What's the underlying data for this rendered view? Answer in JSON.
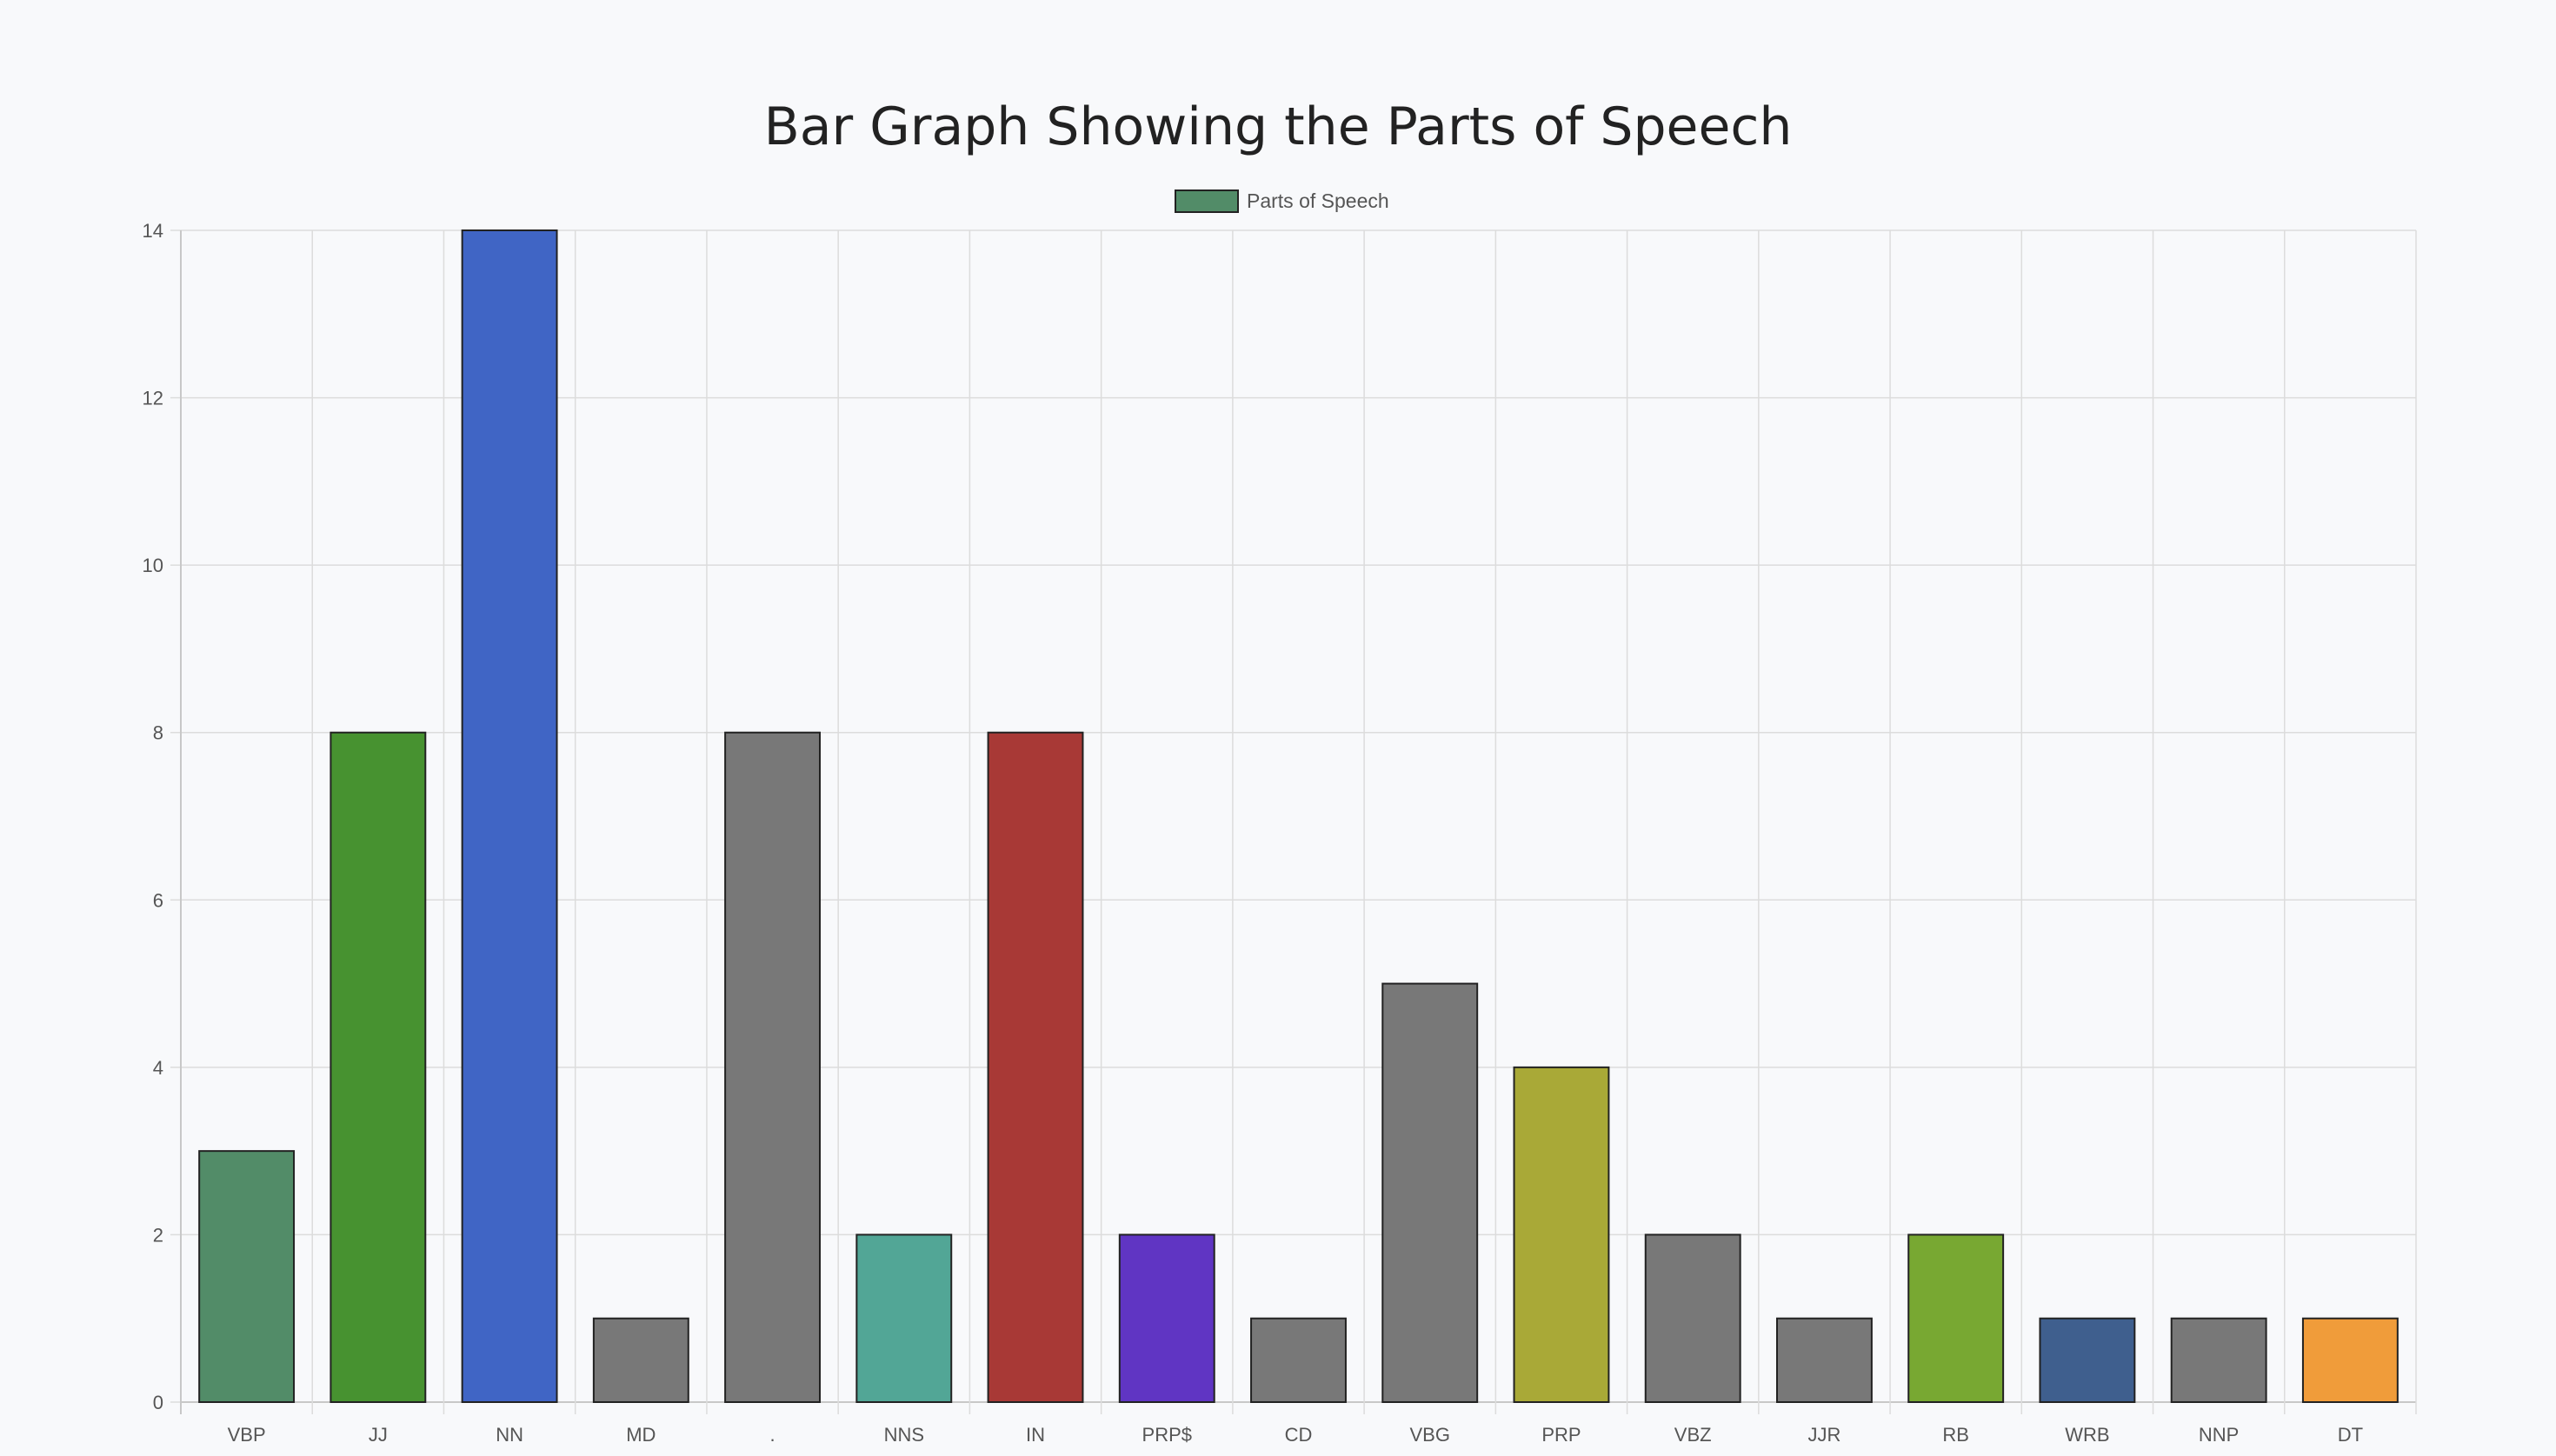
{
  "chart_data": {
    "type": "bar",
    "title": "Bar Graph Showing the Parts of Speech",
    "xlabel": "",
    "ylabel": "",
    "legend": {
      "position": "top-center",
      "entries": [
        {
          "label": "Parts of Speech",
          "color": "#528c68"
        }
      ]
    },
    "grid": true,
    "ylim": [
      0,
      14
    ],
    "yticks": [
      0,
      2,
      4,
      6,
      8,
      10,
      12,
      14
    ],
    "categories": [
      "VBP",
      "JJ",
      "NN",
      "MD",
      ".",
      "NNS",
      "IN",
      "PRP$",
      "CD",
      "VBG",
      "PRP",
      "VBZ",
      "JJR",
      "RB",
      "WRB",
      "NNP",
      "DT"
    ],
    "series": [
      {
        "name": "Parts of Speech",
        "values": [
          3,
          8,
          14,
          1,
          8,
          2,
          8,
          2,
          1,
          5,
          4,
          2,
          1,
          2,
          1,
          1,
          1
        ],
        "colors": [
          "#528c68",
          "#479230",
          "#4065c5",
          "#787878",
          "#787878",
          "#52a696",
          "#a83936",
          "#6035c3",
          "#787878",
          "#787878",
          "#a9a937",
          "#787878",
          "#787878",
          "#78a832",
          "#3f5f8e",
          "#787878",
          "#f09c3a"
        ]
      }
    ]
  }
}
